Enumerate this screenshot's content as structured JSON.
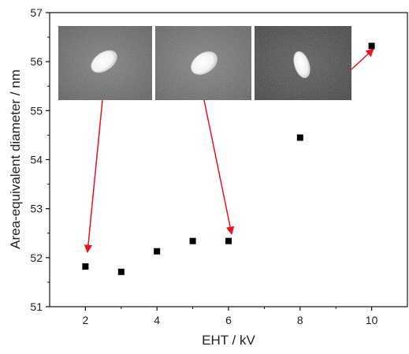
{
  "chart_data": {
    "type": "scatter",
    "xlabel": "EHT / kV",
    "ylabel": "Area-equivalent diameter / nm",
    "xlim": [
      1,
      11
    ],
    "ylim": [
      51,
      57
    ],
    "x_ticks": [
      2,
      4,
      6,
      8,
      10
    ],
    "y_ticks": [
      51,
      52,
      53,
      54,
      55,
      56,
      57
    ],
    "series": [
      {
        "marker": "square",
        "color": "#000000",
        "points": [
          {
            "x": 2,
            "y": 51.82
          },
          {
            "x": 3,
            "y": 51.71
          },
          {
            "x": 4,
            "y": 52.13
          },
          {
            "x": 5,
            "y": 52.34
          },
          {
            "x": 6,
            "y": 52.34
          },
          {
            "x": 8,
            "y": 54.45
          },
          {
            "x": 10,
            "y": 56.32
          }
        ]
      }
    ],
    "grid": false,
    "annotations": [
      {
        "type": "sem-inset-image",
        "points_to": {
          "x": 2,
          "y": 51.82
        },
        "particle": "oval bright particle",
        "arrow_color": "#e8141b"
      },
      {
        "type": "sem-inset-image",
        "points_to": {
          "x": 6,
          "y": 52.34
        },
        "particle": "oval bright particle",
        "arrow_color": "#e8141b"
      },
      {
        "type": "sem-inset-image",
        "points_to": {
          "x": 10,
          "y": 56.32
        },
        "particle": "elongated bright particle",
        "arrow_color": "#e8141b"
      }
    ]
  }
}
